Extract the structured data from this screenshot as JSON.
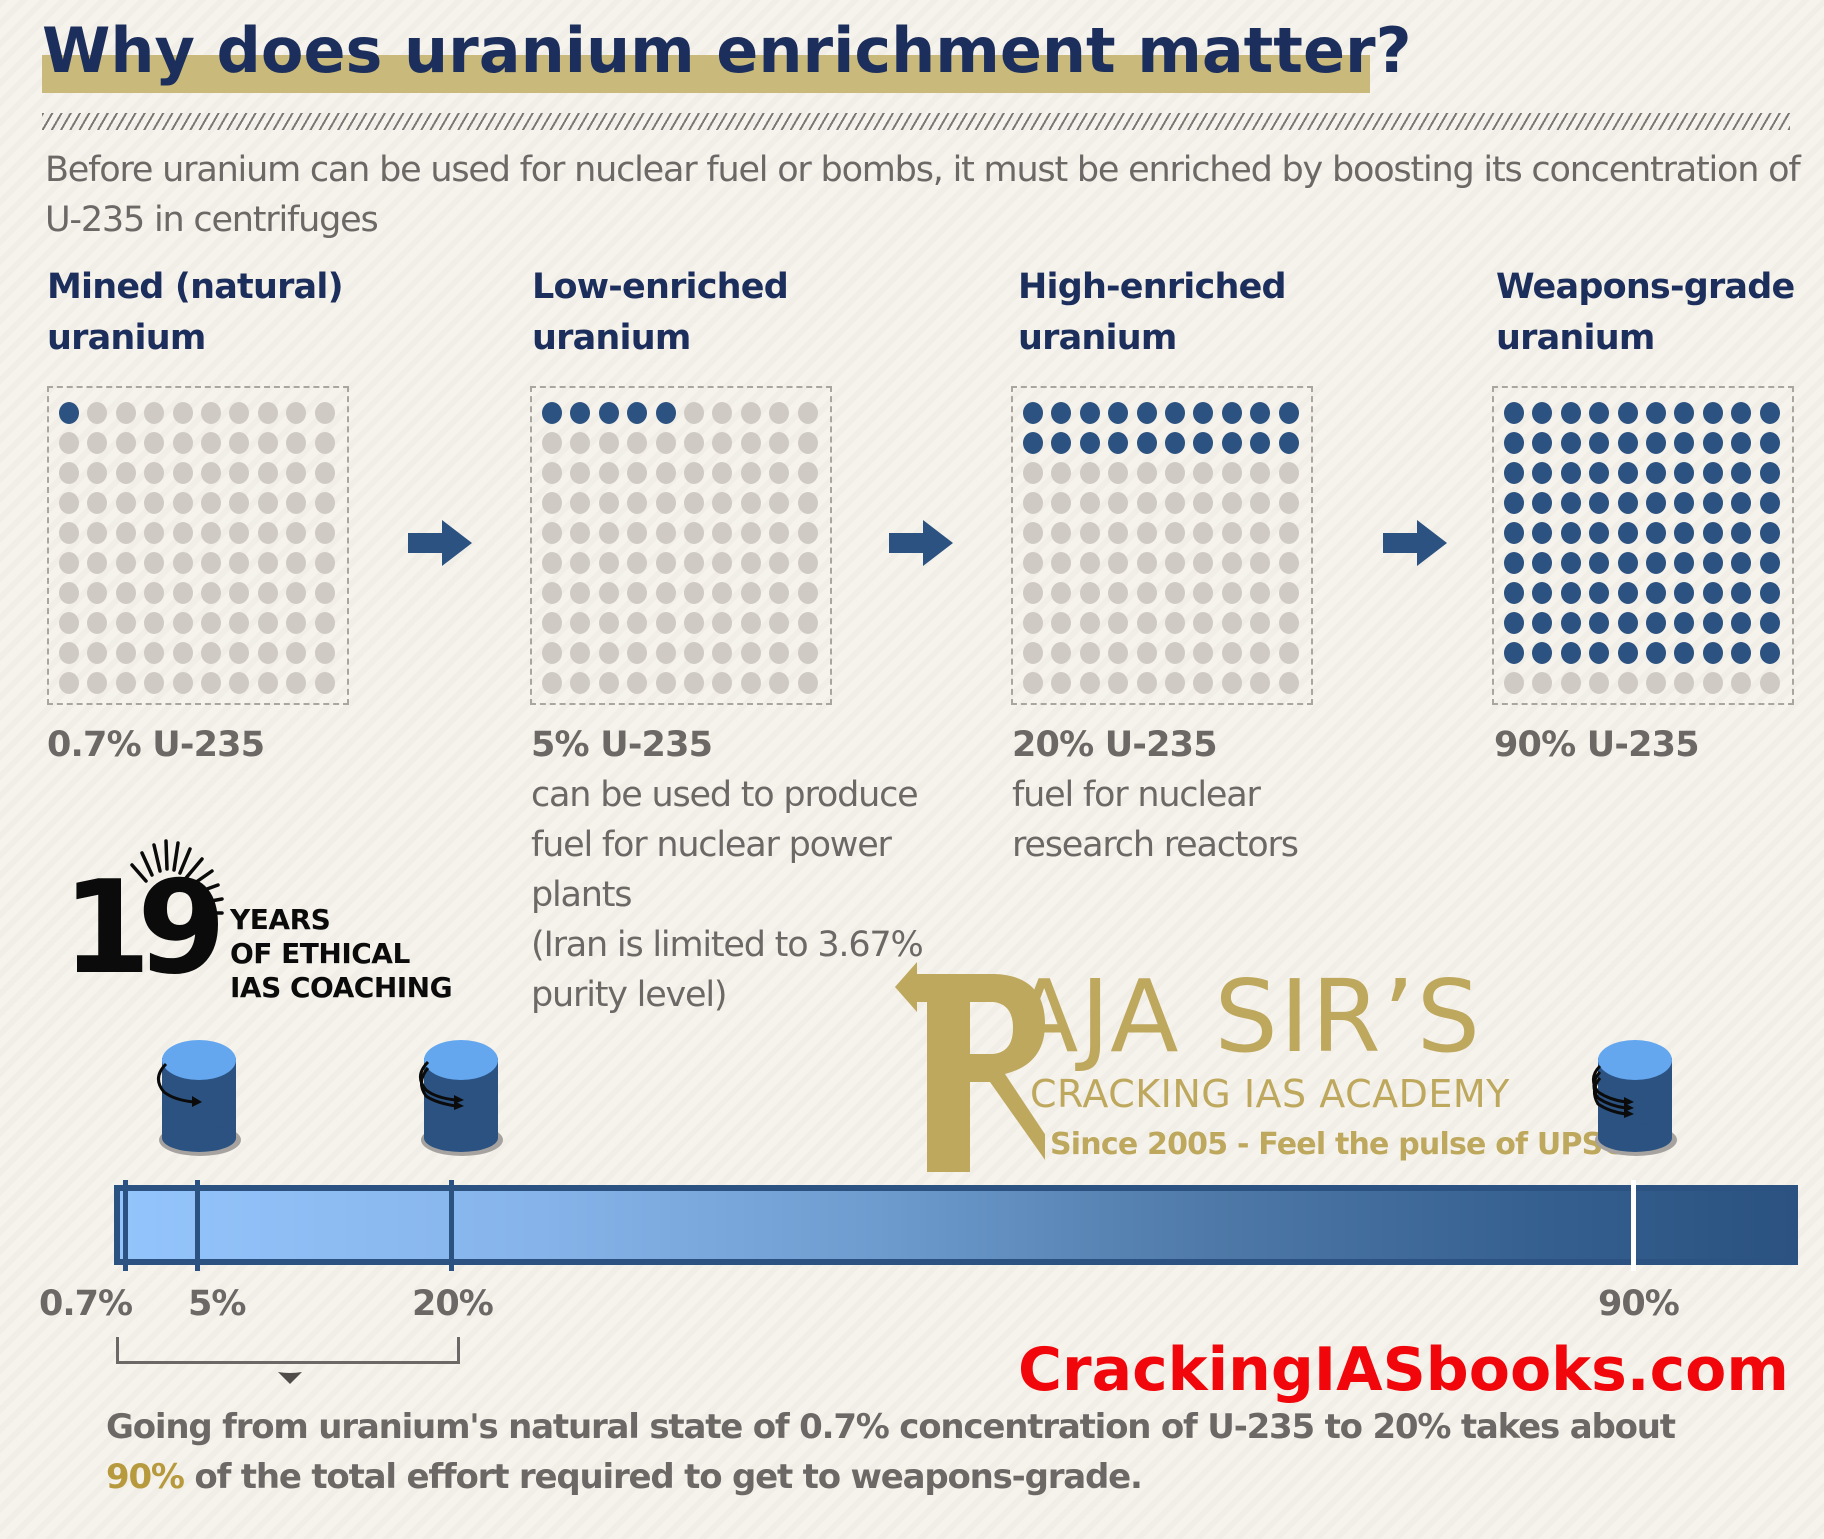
{
  "header": {
    "title": "Why does uranium enrichment matter?",
    "subtitle": "Before uranium can be used for nuclear fuel or bombs, it must be enriched by boosting its concentration of U-235 in centrifuges"
  },
  "stages": [
    {
      "title_line1": "Mined (natural)",
      "title_line2": "uranium",
      "percent_label": "0.7% U-235",
      "enriched_dots": 1,
      "description": ""
    },
    {
      "title_line1": "Low-enriched",
      "title_line2": "uranium",
      "percent_label": "5% U-235",
      "enriched_dots": 5,
      "description": "can be used to produce fuel for nuclear power plants (Iran is limited to 3.67% purity level)",
      "description_lines": [
        "can be used to produce",
        "fuel for nuclear power",
        "plants",
        "(Iran is limited to 3.67%",
        "purity level)"
      ]
    },
    {
      "title_line1": "High-enriched",
      "title_line2": "uranium",
      "percent_label": "20% U-235",
      "enriched_dots": 20,
      "description": "fuel for nuclear research reactors",
      "description_lines": [
        "fuel for nuclear",
        "research reactors"
      ]
    },
    {
      "title_line1": "Weapons-grade",
      "title_line2": "uranium",
      "percent_label": "90% U-235",
      "enriched_dots": 90,
      "description": ""
    }
  ],
  "badge": {
    "number": "19",
    "line1": "YEARS",
    "line2": "OF ETHICAL",
    "line3": "IAS COACHING"
  },
  "brand": {
    "initial": "R",
    "name": "AJA SIR’S",
    "subtitle": "CRACKING IAS ACADEMY",
    "tagline": "Since 2005 - Feel the pulse of UPSC",
    "website": "CrackingIASbooks.com"
  },
  "scale": {
    "labels": [
      "0.7%",
      "5%",
      "20%",
      "90%"
    ],
    "min": 0,
    "max": 100
  },
  "footnote": {
    "line1": "Going from uranium's natural state of 0.7% concentration of U-235 to 20% takes about",
    "highlight": "90%",
    "line2_rest": " of the total effort required to get to weapons-grade."
  },
  "colors": {
    "navy": "#1c2e5c",
    "enriched_dot": "#2b5280",
    "empty_dot": "#cfcbc4",
    "gold": "#c9b97a",
    "brand_gold": "#bea85e",
    "text_gray": "#6b6866",
    "website_red": "#f0060b",
    "background": "#f6f3ec"
  },
  "chart_data": {
    "type": "table",
    "title": "Why does uranium enrichment matter?",
    "categories": [
      "Mined (natural) uranium",
      "Low-enriched uranium",
      "High-enriched uranium",
      "Weapons-grade uranium"
    ],
    "values": [
      0.7,
      5,
      20,
      90
    ],
    "unit": "% U-235",
    "dot_grid": {
      "rows": 10,
      "cols": 10,
      "enriched_counts": [
        1,
        5,
        20,
        90
      ]
    },
    "scale_bar": {
      "ticks": [
        0.7,
        5,
        20,
        90
      ],
      "range": [
        0,
        100
      ]
    },
    "annotation": "0.7% to 20% takes about 90% of the total effort required to get to weapons-grade"
  }
}
